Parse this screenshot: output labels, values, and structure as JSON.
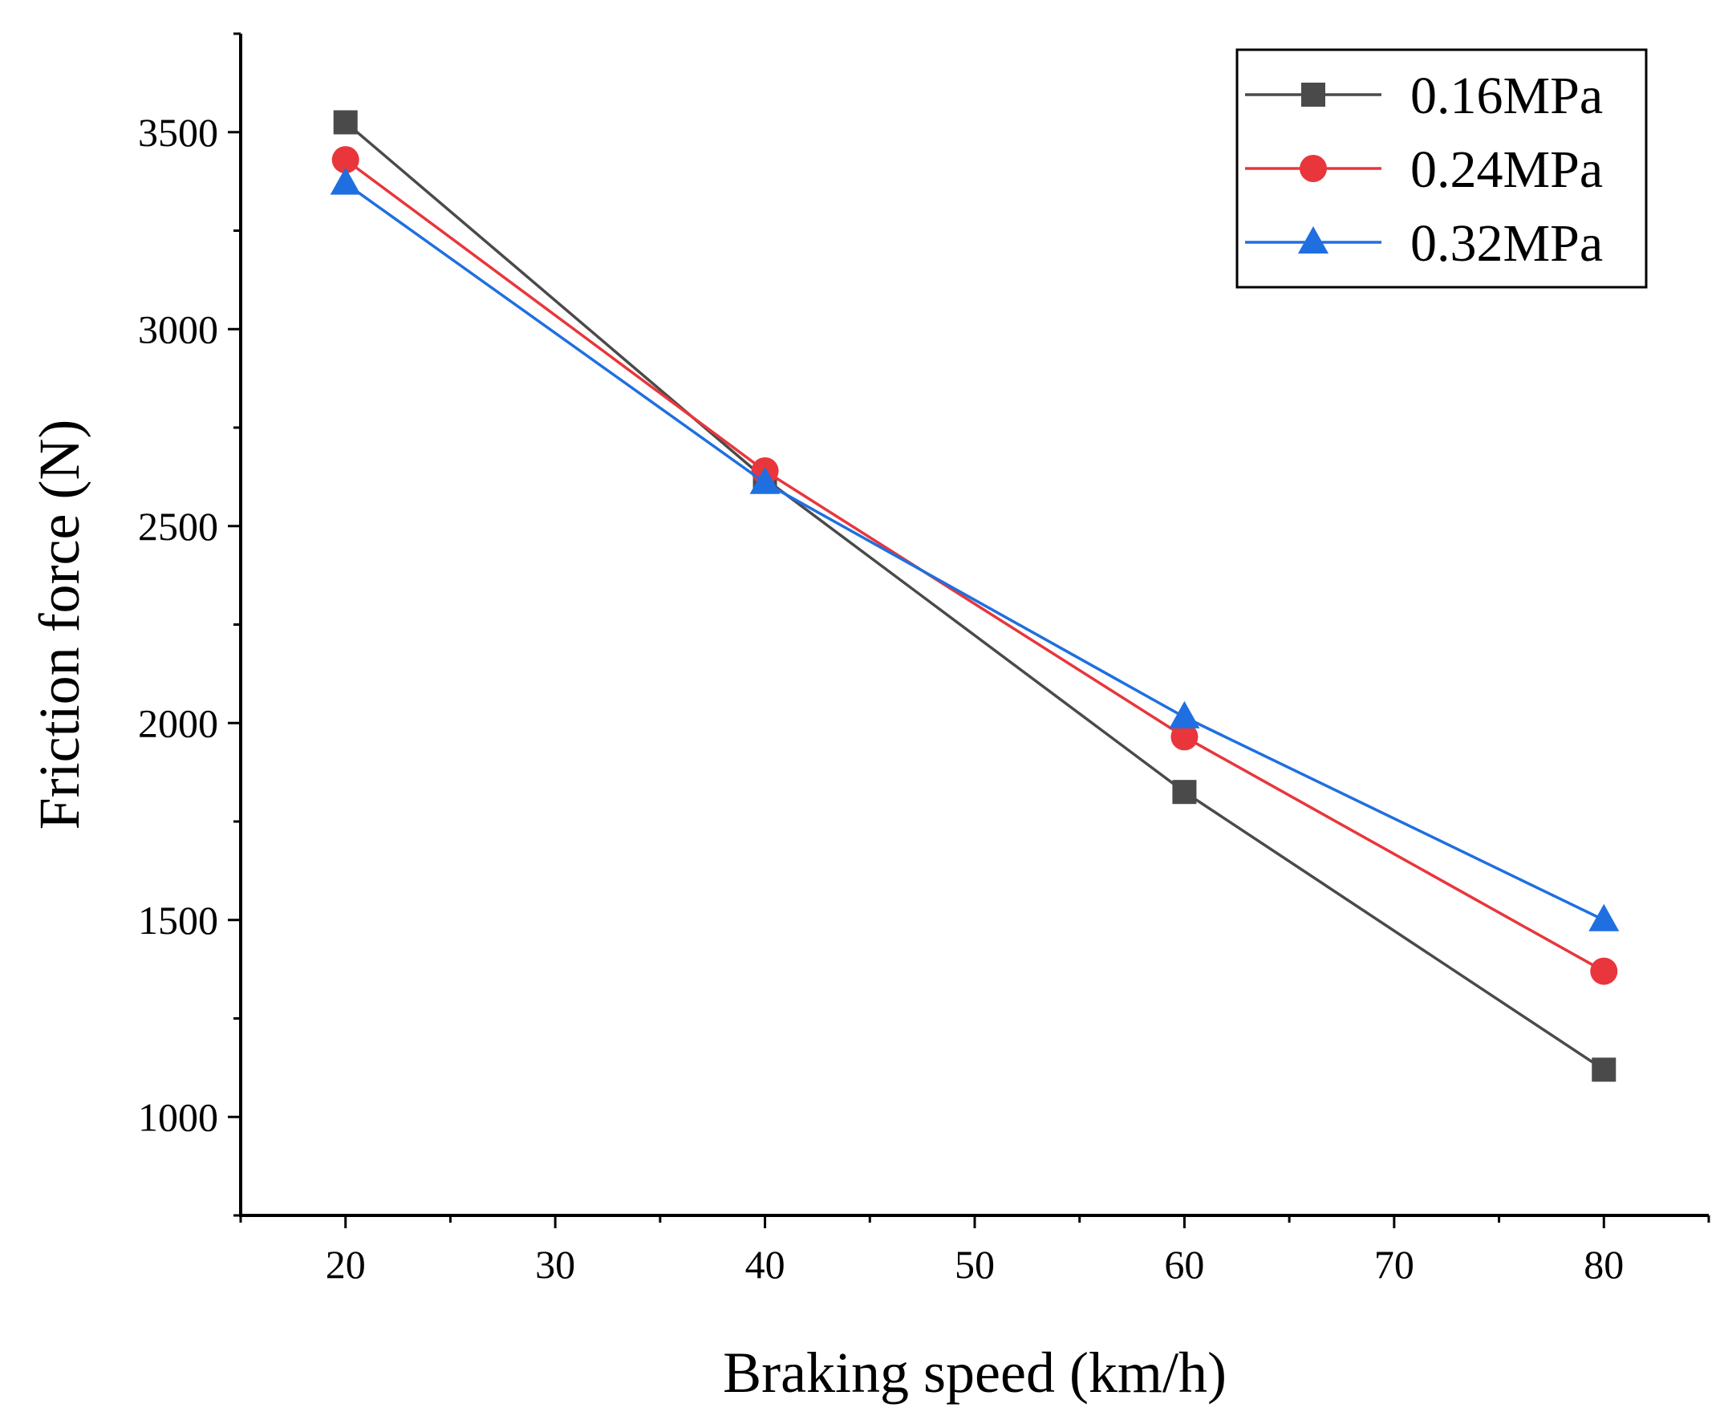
{
  "chart_data": {
    "type": "line",
    "title": "",
    "xlabel": "Braking speed (km/h)",
    "ylabel": "Friction force (N)",
    "xlim": [
      15,
      85
    ],
    "ylim": [
      750,
      3750
    ],
    "x_ticks": [
      20,
      30,
      40,
      50,
      60,
      70,
      80
    ],
    "y_ticks": [
      1000,
      1500,
      2000,
      2500,
      3000,
      3500
    ],
    "x": [
      20,
      40,
      60,
      80
    ],
    "legend_position": "top-right",
    "grid": false,
    "series": [
      {
        "name": "0.16MPa",
        "marker": "square",
        "color": "#4a4a4a",
        "values": [
          3525,
          2620,
          1825,
          1120
        ]
      },
      {
        "name": "0.24MPa",
        "marker": "circle",
        "color": "#e8363c",
        "values": [
          3430,
          2640,
          1965,
          1370
        ]
      },
      {
        "name": "0.32MPa",
        "marker": "triangle",
        "color": "#1f6fe0",
        "values": [
          3370,
          2610,
          2015,
          1500
        ]
      }
    ]
  }
}
